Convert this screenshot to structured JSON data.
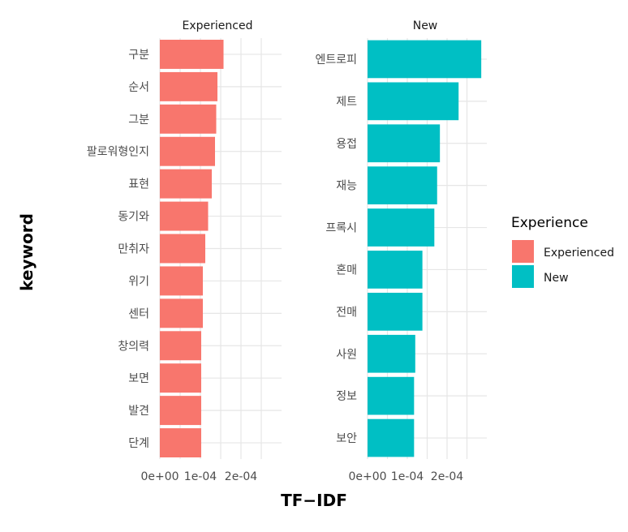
{
  "chart_data": {
    "type": "bar",
    "orientation": "horizontal",
    "xlabel": "TF−IDF",
    "ylabel": "keyword",
    "grid": true,
    "legend": {
      "title": "Experience",
      "placement": "right",
      "entries": [
        {
          "label": "Experienced",
          "color": "#F8766D"
        },
        {
          "label": "New",
          "color": "#00BFC4"
        }
      ]
    },
    "facets": [
      {
        "title": "Experienced",
        "color": "#F8766D",
        "xlim": [
          0,
          0.0003
        ],
        "xticks": [
          0,
          0.0001,
          0.0002
        ],
        "xtick_labels": [
          "0e+00",
          "1e-04",
          "2e-04"
        ],
        "categories": [
          "구분",
          "순서",
          "그분",
          "팔로워형인지",
          "표현",
          "동기와",
          "만취자",
          "위기",
          "센터",
          "창의력",
          "보면",
          "발견",
          "단계"
        ],
        "values": [
          0.000157,
          0.000142,
          0.000139,
          0.000136,
          0.000128,
          0.000119,
          0.000112,
          0.000106,
          0.000106,
          0.000102,
          0.000102,
          0.000102,
          0.000102
        ]
      },
      {
        "title": "New",
        "color": "#00BFC4",
        "xlim": [
          0,
          0.0003
        ],
        "xticks": [
          0,
          0.0001,
          0.0002
        ],
        "xtick_labels": [
          "0e+00",
          "1e-04",
          "2e-04"
        ],
        "categories": [
          "엔트로피",
          "제트",
          "용접",
          "재능",
          "프록시",
          "혼매",
          "전매",
          "사원",
          "정보",
          "보안"
        ],
        "values": [
          0.000286,
          0.000229,
          0.000182,
          0.000175,
          0.000168,
          0.000138,
          0.000138,
          0.00012,
          0.000117,
          0.000117
        ]
      }
    ]
  }
}
